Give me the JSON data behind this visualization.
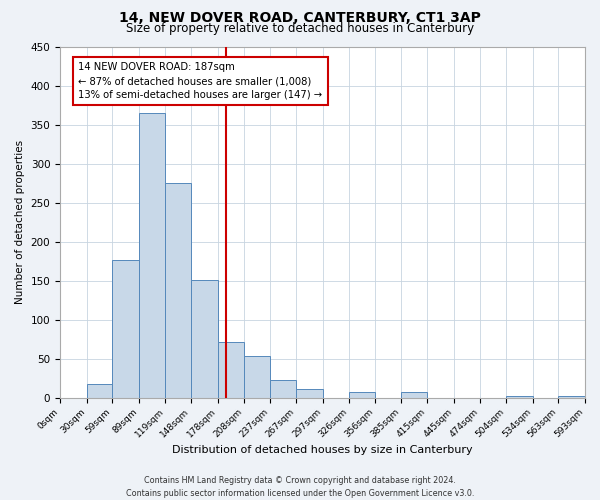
{
  "title": "14, NEW DOVER ROAD, CANTERBURY, CT1 3AP",
  "subtitle": "Size of property relative to detached houses in Canterbury",
  "xlabel": "Distribution of detached houses by size in Canterbury",
  "ylabel": "Number of detached properties",
  "bar_color": "#c8d8e8",
  "bar_edge_color": "#5588bb",
  "vline_x": 187,
  "vline_color": "#cc0000",
  "annotation_title": "14 NEW DOVER ROAD: 187sqm",
  "annotation_line1": "← 87% of detached houses are smaller (1,008)",
  "annotation_line2": "13% of semi-detached houses are larger (147) →",
  "annotation_box_color": "#cc0000",
  "bin_edges": [
    0,
    30,
    59,
    89,
    119,
    148,
    178,
    208,
    237,
    267,
    297,
    326,
    356,
    385,
    415,
    445,
    474,
    504,
    534,
    563,
    593
  ],
  "bar_heights": [
    0,
    18,
    177,
    365,
    275,
    151,
    71,
    54,
    23,
    11,
    0,
    7,
    0,
    7,
    0,
    0,
    0,
    2,
    0,
    2
  ],
  "tick_labels": [
    "0sqm",
    "30sqm",
    "59sqm",
    "89sqm",
    "119sqm",
    "148sqm",
    "178sqm",
    "208sqm",
    "237sqm",
    "267sqm",
    "297sqm",
    "326sqm",
    "356sqm",
    "385sqm",
    "415sqm",
    "445sqm",
    "474sqm",
    "504sqm",
    "534sqm",
    "563sqm",
    "593sqm"
  ],
  "ylim": [
    0,
    450
  ],
  "yticks": [
    0,
    50,
    100,
    150,
    200,
    250,
    300,
    350,
    400,
    450
  ],
  "footnote1": "Contains HM Land Registry data © Crown copyright and database right 2024.",
  "footnote2": "Contains public sector information licensed under the Open Government Licence v3.0.",
  "background_color": "#eef2f7",
  "plot_background_color": "#ffffff",
  "grid_color": "#c8d4e0"
}
